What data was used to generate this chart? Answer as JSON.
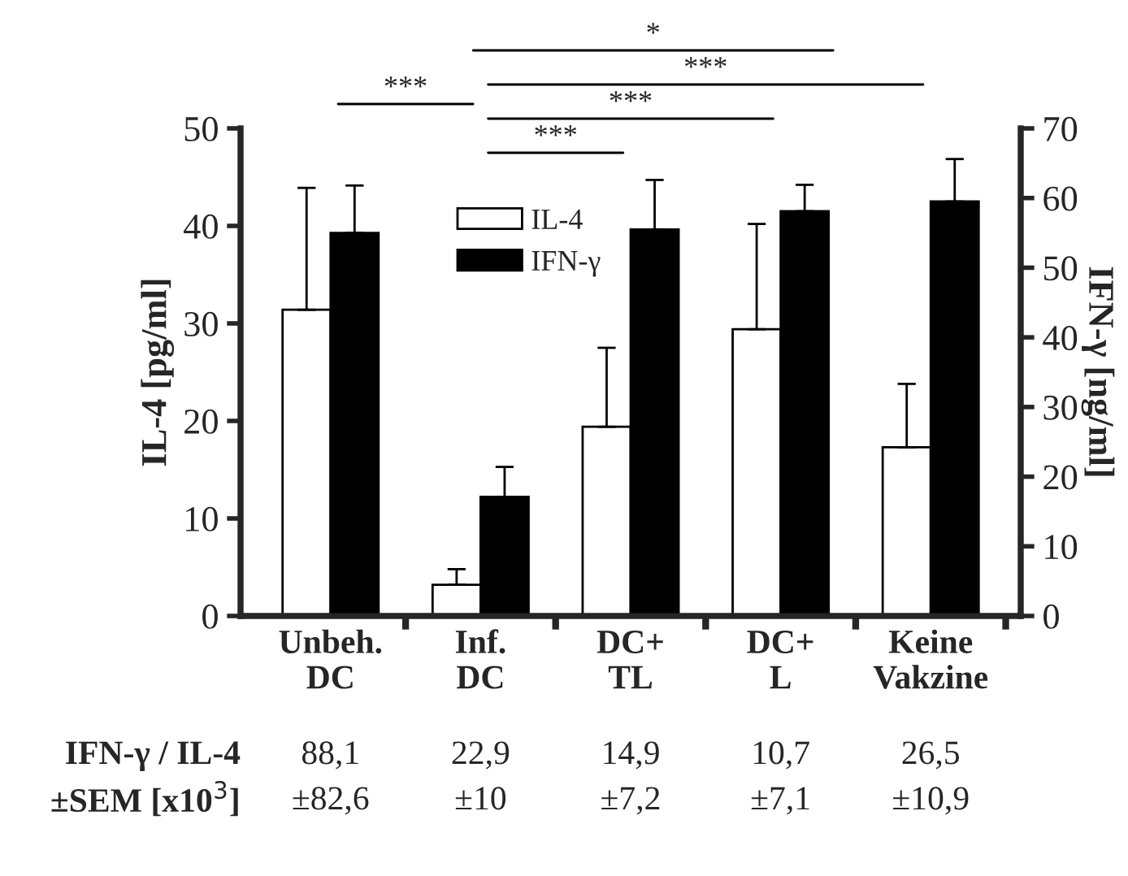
{
  "chart_data": {
    "type": "bar",
    "categories": [
      "Unbeh.\nDC",
      "Inf.\nDC",
      "DC+\nTL",
      "DC+\nL",
      "Keine\nVakzine"
    ],
    "ylabel": "IL-4 [pg/ml]",
    "y2label": "IFN-γ [ng/ml]",
    "ylim": [
      0,
      50
    ],
    "yticks": [
      0,
      10,
      20,
      30,
      40,
      50
    ],
    "y2lim": [
      0,
      70
    ],
    "y2ticks": [
      0,
      10,
      20,
      30,
      40,
      50,
      60,
      70
    ],
    "series": [
      {
        "name": "IL-4",
        "color": "#ffffff",
        "values": [
          31.4,
          3.2,
          19.4,
          29.4,
          17.3
        ],
        "errors": [
          [
            31.4,
            43.9
          ],
          [
            3.2,
            4.8
          ],
          [
            19.4,
            27.5
          ],
          [
            29.4,
            40.2
          ],
          [
            17.3,
            23.8
          ]
        ]
      },
      {
        "name": "IFN-γ",
        "color": "#000000",
        "axis": "y2",
        "values": [
          55.0,
          17.1,
          55.5,
          58.1,
          59.5
        ],
        "errors": [
          [
            55.0,
            61.8
          ],
          [
            17.1,
            21.4
          ],
          [
            55.5,
            62.6
          ],
          [
            58.1,
            61.9
          ],
          [
            59.5,
            65.6
          ]
        ]
      }
    ],
    "annotations": [
      "***",
      "***",
      "***",
      "***",
      "*",
      "IFN-γ / IL-4",
      "88,1",
      "22,9",
      "14,9",
      "10,7",
      "26,5",
      "±SEM [x10$^{3}$]",
      "±82,6",
      "±10",
      "±7,2",
      "±7,1",
      "±10,9"
    ],
    "legend": "top",
    "grid": false
  }
}
